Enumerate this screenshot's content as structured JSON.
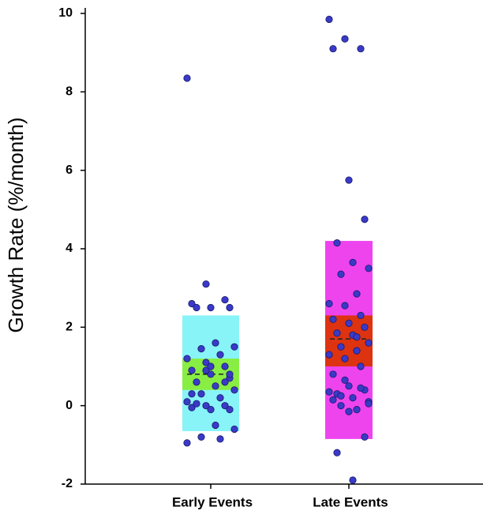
{
  "chart_data": {
    "type": "strip",
    "y_label": "Growth Rate (%/month)",
    "ylim": [
      -2,
      10
    ],
    "yticks": [
      -2,
      0,
      2,
      4,
      6,
      8,
      10
    ],
    "point_color": "#3a3ac8",
    "groups": [
      {
        "name": "Early Events",
        "outer_color": "#88f4f8",
        "inner_color": "#88ee44",
        "outer_range": [
          -0.65,
          2.3
        ],
        "inner_range": [
          0.4,
          1.2
        ],
        "mean": 0.8,
        "points": [
          8.35,
          3.1,
          2.7,
          2.6,
          2.5,
          2.5,
          2.5,
          1.6,
          1.5,
          1.45,
          1.3,
          1.2,
          1.1,
          1.0,
          0.9,
          0.8,
          0.7,
          0.6,
          0.5,
          0.4,
          0.3,
          0.2,
          0.1,
          0.0,
          0.0,
          -0.05,
          -0.1,
          -0.1,
          0.05,
          -0.5,
          -0.6,
          -0.8,
          -0.85,
          -0.95,
          0.9,
          0.6,
          0.3,
          1.0,
          0.8
        ]
      },
      {
        "name": "Late Events",
        "outer_color": "#ee44ee",
        "inner_color": "#dd3311",
        "outer_range": [
          -0.85,
          4.2
        ],
        "inner_range": [
          1.0,
          2.3
        ],
        "mean": 1.7,
        "points": [
          9.85,
          9.35,
          9.1,
          9.1,
          5.75,
          4.75,
          4.15,
          3.65,
          3.5,
          3.35,
          2.85,
          2.6,
          2.55,
          2.3,
          2.2,
          2.1,
          2.0,
          1.85,
          1.8,
          1.6,
          1.5,
          1.4,
          1.3,
          1.2,
          1.0,
          0.8,
          0.5,
          0.4,
          0.3,
          0.2,
          0.1,
          0.0,
          -0.1,
          0.35,
          0.65,
          0.45,
          0.15,
          -0.15,
          -0.8,
          -1.2,
          -1.9,
          0.05,
          0.25,
          1.75
        ]
      }
    ]
  }
}
